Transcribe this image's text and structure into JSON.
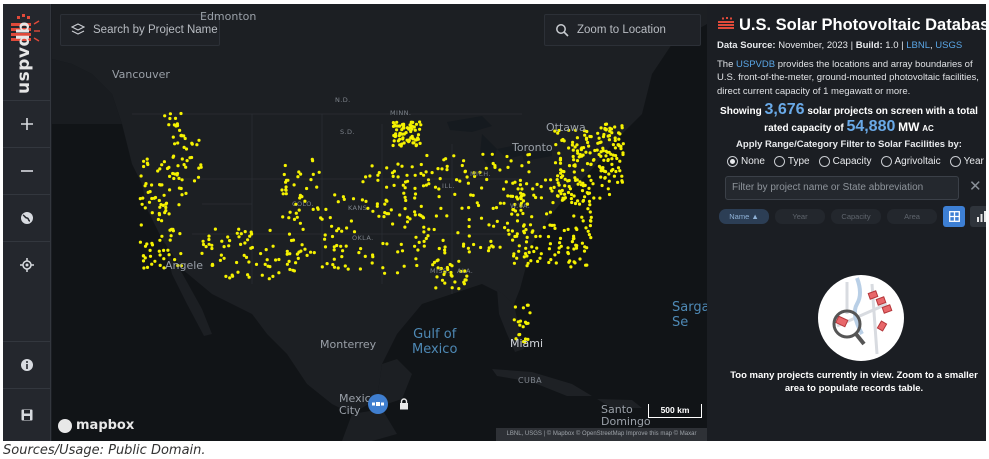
{
  "search": {
    "project_placeholder": "Search by Project Name",
    "location_placeholder": "Zoom to Location"
  },
  "rail": {
    "logo_text": "uspvdb",
    "buttons": [
      {
        "name": "zoom-in",
        "icon": "plus-icon"
      },
      {
        "name": "zoom-out",
        "icon": "minus-icon"
      },
      {
        "name": "basemap",
        "icon": "globe-icon"
      },
      {
        "name": "locate",
        "icon": "crosshair-icon"
      },
      {
        "name": "info",
        "icon": "info-icon"
      },
      {
        "name": "save",
        "icon": "floppy-icon"
      }
    ]
  },
  "map": {
    "labels": {
      "edmonton": "Edmonton",
      "vancouver": "Vancouver",
      "ottawa": "Ottawa",
      "toronto": "Toronto",
      "angeles": "Angele",
      "monterrey": "Monterrey",
      "gulf": "Gulf of\nMexico",
      "miami": "Miami",
      "cuba": "CUBA",
      "mexico_city": "Mexic\nCity",
      "santo_domingo": "Santo\nDomingo",
      "sargasso": "Sarga\nSe",
      "nd": "N.D.",
      "sd": "S.D.",
      "minn": "MINN.",
      "kans": "KANS.",
      "okla": "OKLA.",
      "miss": "MISS.",
      "ala": "ALA.",
      "ill": "ILL.",
      "wva": "W.VA.",
      "mich": "MICH.",
      "colo": "COLO."
    },
    "brand": "mapbox",
    "scale": "500 km",
    "attribution": "LBNL, USGS | © Mapbox © OpenStreetMap  Improve this map © Maxar",
    "dot_color": "#f5f200"
  },
  "panel": {
    "title": "U.S. Solar Photovoltaic Database",
    "meta_source_label": "Data Source:",
    "meta_source_value": "November, 2023",
    "meta_sep": "|",
    "meta_build_label": "Build:",
    "meta_build_value": "1.0",
    "meta_link1": "LBNL",
    "meta_comma": ",",
    "meta_link2": "USGS",
    "desc_pre": "The",
    "desc_link": "USPVDB",
    "desc_post": "provides the locations and array boundaries of U.S. front-of-the-meter, ground-mounted photovoltaic facilities, direct current capacity of 1 megawatt or more.",
    "showing_pre": "Showing",
    "showing_count": "3,676",
    "showing_mid": "solar projects on screen with a total rated capacity of",
    "showing_capacity": "54,880",
    "showing_unit": "MW",
    "showing_unit_sub": "AC",
    "filter_title": "Apply Range/Category Filter to Solar Facilities by:",
    "radios": [
      "None",
      "Type",
      "Capacity",
      "Agrivoltaic",
      "Year"
    ],
    "radio_selected": "None",
    "filter_placeholder": "Filter by project name or State abbreviation",
    "sort_tabs": [
      "Name ▲",
      "Year",
      "Capacity",
      "Area"
    ],
    "too_many": "Too many projects currently in view. Zoom to a smaller area to populate records table.",
    "accent": "#4a8fd8"
  },
  "caption": "Sources/Usage: Public Domain."
}
